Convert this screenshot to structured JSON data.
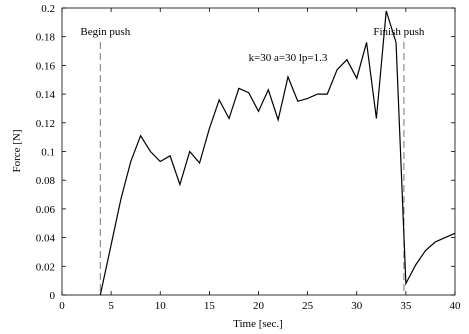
{
  "chart_data": {
    "type": "line",
    "title": "",
    "xlabel": "Time [sec.]",
    "ylabel": "Force [N]",
    "xlim": [
      0,
      40
    ],
    "ylim": [
      0,
      0.2
    ],
    "xticks": [
      "0",
      "5",
      "10",
      "15",
      "20",
      "25",
      "30",
      "35",
      "40"
    ],
    "yticks": [
      "0",
      "0.02",
      "0.04",
      "0.06",
      "0.08",
      "0.1",
      "0.12",
      "0.14",
      "0.16",
      "0.18",
      "0.2"
    ],
    "grid": false,
    "series": [
      {
        "color": "#000000",
        "points": [
          [
            3.9,
            0.0
          ],
          [
            5.0,
            0.035
          ],
          [
            6.0,
            0.067
          ],
          [
            7.0,
            0.093
          ],
          [
            8.0,
            0.111
          ],
          [
            9.0,
            0.1
          ],
          [
            10.0,
            0.093
          ],
          [
            11.0,
            0.097
          ],
          [
            12.0,
            0.077
          ],
          [
            13.0,
            0.1
          ],
          [
            14.0,
            0.092
          ],
          [
            15.0,
            0.116
          ],
          [
            16.0,
            0.136
          ],
          [
            17.0,
            0.123
          ],
          [
            18.0,
            0.144
          ],
          [
            19.0,
            0.141
          ],
          [
            20.0,
            0.128
          ],
          [
            21.0,
            0.143
          ],
          [
            22.0,
            0.122
          ],
          [
            23.0,
            0.152
          ],
          [
            24.0,
            0.135
          ],
          [
            25.0,
            0.137
          ],
          [
            26.0,
            0.14
          ],
          [
            27.0,
            0.14
          ],
          [
            28.0,
            0.157
          ],
          [
            29.0,
            0.164
          ],
          [
            30.0,
            0.151
          ],
          [
            31.0,
            0.176
          ],
          [
            32.0,
            0.123
          ],
          [
            33.0,
            0.198
          ],
          [
            34.0,
            0.176
          ],
          [
            35.0,
            0.008
          ],
          [
            36.0,
            0.021
          ],
          [
            37.0,
            0.031
          ],
          [
            38.0,
            0.037
          ],
          [
            39.0,
            0.04
          ],
          [
            40.0,
            0.043
          ]
        ]
      }
    ],
    "vlines": [
      {
        "x": 3.9,
        "label": "Begin push",
        "style": "dashed"
      },
      {
        "x": 34.8,
        "label": "Finish push",
        "style": "dashed"
      }
    ],
    "annotations": [
      {
        "text": "k=30 a=30 lp=1.3",
        "x": 23.0,
        "y": 0.163
      }
    ]
  }
}
